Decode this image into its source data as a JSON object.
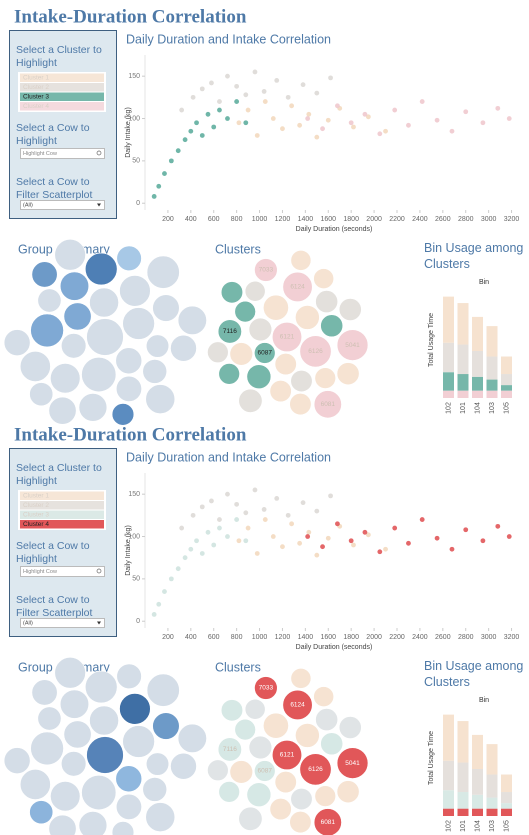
{
  "panels": [
    {
      "title": "Intake-Duration Correlation",
      "sidebar": {
        "cluster_prompt": "Select a Cluster to Highlight",
        "clusters": [
          "Cluster 1",
          "Cluster 2",
          "Cluster 3",
          "Cluster 4"
        ],
        "cluster_colors": [
          "#f6e6d7",
          "#e6e2de",
          "#76b7aa",
          "#f4dade"
        ],
        "selected": 2,
        "cow_prompt": "Select a Cow to Highlight",
        "cow_placeholder": "Highlight Cow",
        "filter_prompt": "Select a Cow to Filter Scatterplot",
        "filter_value": "(All)"
      },
      "chart_data": [
        {
          "type": "scatter",
          "title": "Daily Duration and Intake Correlation",
          "x_label": "Daily Duration (seconds)",
          "y_label": "Daily Intake (kg)",
          "xlim": [
            0,
            3300
          ],
          "xticks": [
            200,
            400,
            600,
            800,
            1000,
            1200,
            1400,
            1600,
            1800,
            2000,
            2200,
            2400,
            2600,
            2800,
            3000,
            3200
          ],
          "ylim": [
            -8,
            175
          ],
          "yticks": [
            0,
            50,
            100,
            150
          ],
          "series": [
            {
              "color": "#f3d9bf",
              "x": [
                820,
                900,
                980,
                1050,
                1120,
                1200,
                1280,
                1350,
                1430,
                1500,
                1600,
                1700,
                1820,
                1950,
                2100
              ],
              "y": [
                95,
                110,
                80,
                120,
                100,
                88,
                115,
                92,
                105,
                78,
                98,
                112,
                90,
                102,
                85
              ]
            },
            {
              "color": "#ddd9d6",
              "x": [
                320,
                420,
                500,
                580,
                650,
                720,
                800,
                880,
                960,
                1040,
                1150,
                1250,
                1380,
                1500,
                1620
              ],
              "y": [
                110,
                125,
                135,
                142,
                120,
                150,
                138,
                128,
                155,
                132,
                145,
                125,
                140,
                130,
                148
              ]
            },
            {
              "color": "#5fae9f",
              "x": [
                80,
                120,
                170,
                230,
                290,
                350,
                400,
                450,
                500,
                550,
                600,
                650,
                720,
                800,
                880
              ],
              "y": [
                8,
                20,
                35,
                50,
                62,
                75,
                85,
                95,
                80,
                105,
                90,
                110,
                100,
                120,
                95
              ]
            },
            {
              "color": "#f0c9ce",
              "x": [
                1420,
                1550,
                1680,
                1800,
                1920,
                2050,
                2180,
                2300,
                2420,
                2550,
                2680,
                2800,
                2950,
                3080,
                3180
              ],
              "y": [
                100,
                88,
                115,
                95,
                105,
                82,
                110,
                92,
                120,
                98,
                85,
                108,
                95,
                112,
                100
              ]
            }
          ]
        },
        {
          "type": "bubble",
          "title": "Group Summary",
          "values": [
            400,
            250,
            300,
            200,
            350,
            180,
            220,
            280,
            150,
            320,
            260,
            190,
            240,
            170,
            300,
            210,
            230,
            160,
            270,
            200,
            140,
            250,
            180,
            310,
            220,
            190,
            160,
            280,
            200,
            240
          ],
          "colors": [
            "#d4dde7",
            "#d4dde7",
            "#d4dde7",
            "#d4dde7",
            "#d4dde7",
            "#d4dde7",
            "#7fa9d4",
            "#d4dde7",
            "#d4dde7",
            "#7fa9d4",
            "#d4dde7",
            "#d4dde7",
            "#7fa9d4",
            "#d4dde7",
            "#4e7fb5",
            "#d4dde7",
            "#d4dde7",
            "#d4dde7",
            "#d4dde7",
            "#d4dde7",
            "#5b8cc0",
            "#d4dde7",
            "#a7c8e6",
            "#d4dde7",
            "#d4dde7",
            "#6d9ac8",
            "#d4dde7",
            "#d4dde7",
            "#d4dde7",
            "#d4dde7"
          ]
        },
        {
          "type": "bubble",
          "title": "Clusters",
          "highlight": "#76b7aa",
          "label_color": "#1f1f1f",
          "values": [
            300,
            200,
            180,
            340,
            160,
            150,
            220,
            170,
            160,
            200,
            300,
            180,
            150,
            170,
            160,
            140,
            190,
            150,
            330,
            170,
            160,
            150,
            180,
            140,
            160,
            190,
            170,
            260,
            150,
            140
          ],
          "colors": [
            "#f2cfd4",
            "#f6e3d2",
            "#e3e0dc",
            "#f2cfd4",
            "#f6e3d2",
            "#76b7aa",
            "#f6e3d2",
            "#76b7aa",
            "#e3e0dc",
            "#76b7aa",
            "#f2cfd4",
            "#f6e3d2",
            "#76b7aa",
            "#e3e0dc",
            "#f6e3d2",
            "#e3e0dc",
            "#76b7aa",
            "#f6e3d2",
            "#f2cfd4",
            "#e3e0dc",
            "#f6e3d2",
            "#76b7aa",
            "#f2cfd4",
            "#f6e3d2",
            "#76b7aa",
            "#e3e0dc",
            "#f6e3d2",
            "#f2cfd4",
            "#e3e0dc",
            "#f6e3d2"
          ],
          "labels": [
            "6121",
            null,
            null,
            "6126",
            null,
            "6087",
            null,
            null,
            null,
            null,
            "6124",
            null,
            null,
            null,
            null,
            null,
            "7116",
            null,
            "5041",
            null,
            null,
            null,
            "7033",
            null,
            null,
            null,
            null,
            "6081",
            null,
            null
          ]
        },
        {
          "type": "stacked_bar",
          "title": "Bin Usage among Clusters",
          "subtitle": "Bin",
          "y_label": "Total Usage Time",
          "categories": [
            "102",
            "101",
            "104",
            "103",
            "105"
          ],
          "ylim": [
            0,
            115
          ],
          "series": [
            {
              "color": "#f2cfd4",
              "values": [
                8,
                8,
                8,
                8,
                8
              ]
            },
            {
              "color": "#76b7aa",
              "values": [
                20,
                18,
                15,
                12,
                6
              ]
            },
            {
              "color": "#e5e0dc",
              "values": [
                32,
                32,
                28,
                25,
                12
              ]
            },
            {
              "color": "#f6e2cf",
              "values": [
                50,
                45,
                37,
                33,
                19
              ]
            }
          ]
        }
      ]
    },
    {
      "title": "Intake-Duration Correlation",
      "sidebar": {
        "cluster_prompt": "Select a Cluster to Highlight",
        "clusters": [
          "Cluster 1",
          "Cluster 2",
          "Cluster 3",
          "Cluster 4"
        ],
        "cluster_colors": [
          "#f6e6d7",
          "#e6e2de",
          "#dbe9e6",
          "#e15759"
        ],
        "selected": 3,
        "cow_prompt": "Select a Cow to Highlight",
        "cow_placeholder": "Highlight Cow",
        "filter_prompt": "Select a Cow to Filter Scatterplot",
        "filter_value": "(All)"
      },
      "chart_data": [
        {
          "type": "scatter",
          "title": "Daily Duration and Intake Correlation",
          "x_label": "Daily Duration (seconds)",
          "y_label": "Daily Intake (kg)",
          "xlim": [
            0,
            3300
          ],
          "xticks": [
            200,
            400,
            600,
            800,
            1000,
            1200,
            1400,
            1600,
            1800,
            2000,
            2200,
            2400,
            2600,
            2800,
            3000,
            3200
          ],
          "ylim": [
            -8,
            175
          ],
          "yticks": [
            0,
            50,
            100,
            150
          ],
          "series": [
            {
              "color": "#f3d9bf",
              "x": [
                820,
                900,
                980,
                1050,
                1120,
                1200,
                1280,
                1350,
                1430,
                1500,
                1600,
                1700,
                1820,
                1950,
                2100
              ],
              "y": [
                95,
                110,
                80,
                120,
                100,
                88,
                115,
                92,
                105,
                78,
                98,
                112,
                90,
                102,
                85
              ]
            },
            {
              "color": "#ddd9d6",
              "x": [
                320,
                420,
                500,
                580,
                650,
                720,
                800,
                880,
                960,
                1040,
                1150,
                1250,
                1380,
                1500,
                1620
              ],
              "y": [
                110,
                125,
                135,
                142,
                120,
                150,
                138,
                128,
                155,
                132,
                145,
                125,
                140,
                130,
                148
              ]
            },
            {
              "color": "#cfe3df",
              "x": [
                80,
                120,
                170,
                230,
                290,
                350,
                400,
                450,
                500,
                550,
                600,
                650,
                720,
                800,
                880
              ],
              "y": [
                8,
                20,
                35,
                50,
                62,
                75,
                85,
                95,
                80,
                105,
                90,
                110,
                100,
                120,
                95
              ]
            },
            {
              "color": "#e15759",
              "x": [
                1420,
                1550,
                1680,
                1800,
                1920,
                2050,
                2180,
                2300,
                2420,
                2550,
                2680,
                2800,
                2950,
                3080,
                3180
              ],
              "y": [
                100,
                88,
                115,
                95,
                105,
                82,
                110,
                92,
                120,
                98,
                85,
                108,
                95,
                112,
                100
              ]
            }
          ]
        },
        {
          "type": "bubble",
          "title": "Group Summary",
          "values": [
            400,
            250,
            300,
            200,
            350,
            180,
            220,
            280,
            150,
            320,
            260,
            190,
            240,
            170,
            300,
            210,
            230,
            160,
            270,
            200,
            140,
            250,
            180,
            310,
            220,
            190,
            160,
            280,
            200,
            240
          ],
          "colors": [
            "#5683b8",
            "#d4dde7",
            "#d4dde7",
            "#8fb7de",
            "#d4dde7",
            "#d4dde7",
            "#d4dde7",
            "#3f6fa5",
            "#d4dde7",
            "#d4dde7",
            "#d4dde7",
            "#d4dde7",
            "#d4dde7",
            "#d4dde7",
            "#d4dde7",
            "#6d9ac8",
            "#d4dde7",
            "#d4dde7",
            "#d4dde7",
            "#d4dde7",
            "#d4dde7",
            "#d4dde7",
            "#d4dde7",
            "#d4dde7",
            "#d4dde7",
            "#d4dde7",
            "#8cb4dc",
            "#d4dde7",
            "#d4dde7",
            "#d4dde7"
          ]
        },
        {
          "type": "bubble",
          "title": "Clusters",
          "highlight": "#e15759",
          "label_color": "#ffffff",
          "values": [
            300,
            200,
            180,
            340,
            160,
            150,
            220,
            170,
            160,
            200,
            300,
            180,
            150,
            170,
            160,
            140,
            190,
            150,
            330,
            170,
            160,
            150,
            180,
            140,
            160,
            190,
            170,
            260,
            150,
            140
          ],
          "colors": [
            "#e15759",
            "#f6e3d2",
            "#e0e4e6",
            "#e15759",
            "#f6e3d2",
            "#d6e8e5",
            "#f6e3d2",
            "#d6e8e5",
            "#e0e4e6",
            "#d6e8e5",
            "#e15759",
            "#f6e3d2",
            "#d6e8e5",
            "#e0e4e6",
            "#f6e3d2",
            "#e0e4e6",
            "#d6e8e5",
            "#f6e3d2",
            "#e15759",
            "#e0e4e6",
            "#f6e3d2",
            "#d6e8e5",
            "#e15759",
            "#f6e3d2",
            "#d6e8e5",
            "#e0e4e6",
            "#f6e3d2",
            "#e15759",
            "#e0e4e6",
            "#f6e3d2"
          ],
          "labels": [
            "6121",
            null,
            null,
            "6126",
            null,
            "6087",
            null,
            null,
            null,
            null,
            "6124",
            null,
            null,
            null,
            null,
            null,
            "7116",
            null,
            "5041",
            null,
            null,
            null,
            "7033",
            null,
            null,
            null,
            null,
            "6081",
            null,
            null
          ]
        },
        {
          "type": "stacked_bar",
          "title": "Bin Usage among Clusters",
          "subtitle": "Bin",
          "y_label": "Total Usage Time",
          "categories": [
            "102",
            "101",
            "104",
            "103",
            "105"
          ],
          "ylim": [
            0,
            115
          ],
          "series": [
            {
              "color": "#e15759",
              "values": [
                8,
                8,
                8,
                8,
                8
              ]
            },
            {
              "color": "#d8e9e5",
              "values": [
                20,
                18,
                15,
                12,
                6
              ]
            },
            {
              "color": "#e5e0dc",
              "values": [
                32,
                32,
                28,
                25,
                12
              ]
            },
            {
              "color": "#f6e2cf",
              "values": [
                50,
                45,
                37,
                33,
                19
              ]
            }
          ]
        }
      ]
    }
  ]
}
